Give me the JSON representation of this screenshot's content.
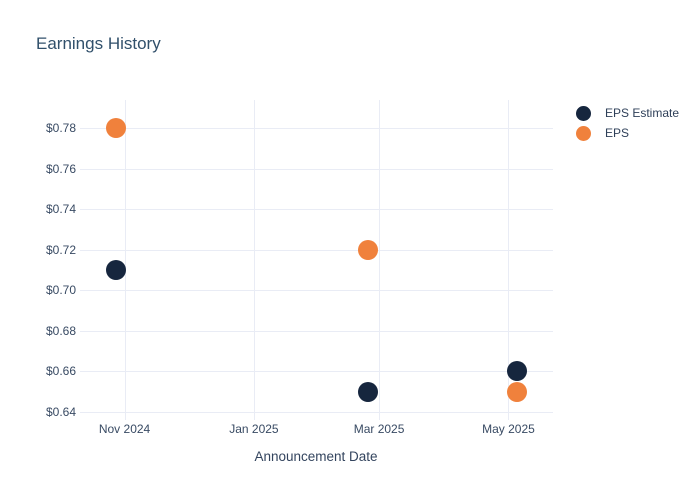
{
  "title": "Earnings History",
  "chart_data": {
    "type": "scatter",
    "title": "Earnings History",
    "xlabel": "Announcement Date",
    "ylabel": "",
    "grid": true,
    "legend_position": "right",
    "x_range": [
      "2024-10-11",
      "2025-05-22"
    ],
    "y_range": [
      0.636,
      0.794
    ],
    "x_ticks": [
      {
        "date": "2024-11-01",
        "label": "Nov 2024"
      },
      {
        "date": "2025-01-01",
        "label": "Jan 2025"
      },
      {
        "date": "2025-03-01",
        "label": "Mar 2025"
      },
      {
        "date": "2025-05-01",
        "label": "May 2025"
      }
    ],
    "y_ticks": [
      {
        "value": 0.78,
        "label": "$0.78"
      },
      {
        "value": 0.76,
        "label": "$0.76"
      },
      {
        "value": 0.74,
        "label": "$0.74"
      },
      {
        "value": 0.72,
        "label": "$0.72"
      },
      {
        "value": 0.7,
        "label": "$0.70"
      },
      {
        "value": 0.68,
        "label": "$0.68"
      },
      {
        "value": 0.66,
        "label": "$0.66"
      },
      {
        "value": 0.64,
        "label": "$0.64"
      }
    ],
    "series": [
      {
        "name": "EPS Estimate",
        "color": "#16263e",
        "points": [
          {
            "date": "2024-10-28",
            "value": 0.71
          },
          {
            "date": "2025-02-24",
            "value": 0.65
          },
          {
            "date": "2025-05-05",
            "value": 0.66
          }
        ]
      },
      {
        "name": "EPS",
        "color": "#f0813c",
        "points": [
          {
            "date": "2024-10-28",
            "value": 0.78
          },
          {
            "date": "2025-02-24",
            "value": 0.72
          },
          {
            "date": "2025-05-05",
            "value": 0.65
          }
        ]
      }
    ]
  }
}
